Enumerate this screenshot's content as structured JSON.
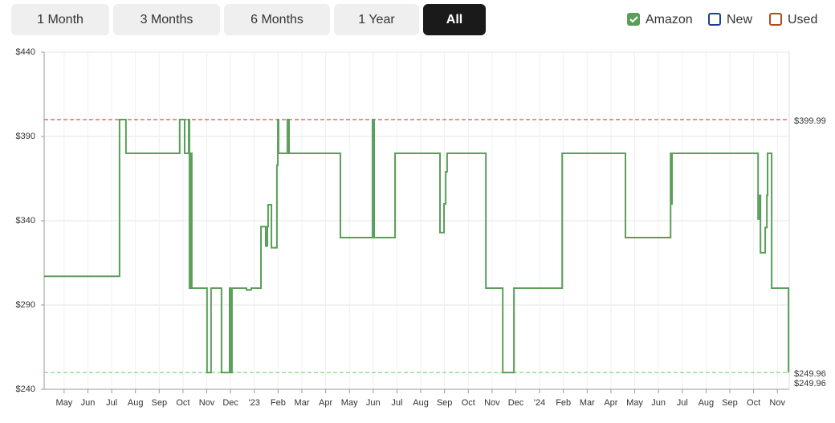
{
  "range_buttons": [
    {
      "label": "1 Month",
      "active": false
    },
    {
      "label": "3 Months",
      "active": false
    },
    {
      "label": "6 Months",
      "active": false
    },
    {
      "label": "1 Year",
      "active": false
    },
    {
      "label": "All",
      "active": true
    }
  ],
  "chart_data": {
    "type": "step",
    "series": [
      {
        "name": "Amazon",
        "color": "#5a9e5a",
        "checked": true,
        "x": [
          -0.84,
          2.33,
          2.6,
          4.86,
          5.07,
          5.24,
          5.27,
          5.34,
          5.37,
          6.01,
          6.18,
          6.62,
          6.96,
          6.99,
          7.06,
          7.67,
          7.87,
          8.28,
          8.48,
          8.55,
          8.58,
          8.72,
          8.95,
          8.99,
          9.02,
          9.39,
          9.46,
          11.62,
          12.97,
          13.04,
          13.92,
          15.81,
          15.98,
          16.05,
          16.11,
          17.74,
          18.45,
          18.92,
          20.95,
          23.61,
          25.51,
          25.54,
          25.57,
          29.19,
          29.26,
          29.29,
          29.49,
          29.56,
          29.59,
          29.76,
          30.47
        ],
        "values": [
          307,
          399.99,
          379.99,
          399.99,
          379.99,
          399.99,
          299.99,
          379.99,
          299.99,
          249.96,
          299.99,
          249.96,
          299.99,
          249.96,
          299.99,
          298.99,
          299.99,
          336.5,
          325,
          336.5,
          349.5,
          324,
          373,
          399.99,
          379.99,
          399.99,
          379.99,
          329.99,
          399.99,
          329.99,
          379.99,
          333,
          350,
          369,
          379.99,
          299.99,
          249.96,
          299.99,
          379.99,
          329.99,
          379.99,
          349.99,
          379.99,
          341,
          355,
          320.99,
          336,
          355,
          379.99,
          299.99,
          249.96
        ]
      },
      {
        "name": "New",
        "color": "#1f3f8f",
        "checked": false
      },
      {
        "name": "Used",
        "color": "#b8461f",
        "checked": false
      }
    ],
    "reference_lines": [
      {
        "value": 399.99,
        "label": "$399.99",
        "color": "#cc5555"
      },
      {
        "value": 249.96,
        "label": "$249.96",
        "color": "#77cc77"
      }
    ],
    "end_label": {
      "value": 249.96,
      "label": "$249.96",
      "color": "#5fb85f"
    },
    "ylim": [
      240,
      440
    ],
    "yticks": [
      {
        "value": 240,
        "label": "$240"
      },
      {
        "value": 290,
        "label": "$290"
      },
      {
        "value": 340,
        "label": "$340"
      },
      {
        "value": 390,
        "label": "$390"
      },
      {
        "value": 440,
        "label": "$440"
      }
    ],
    "xlim": [
      -0.84,
      30.5
    ],
    "xticks": [
      {
        "value": 0,
        "label": "May"
      },
      {
        "value": 1,
        "label": "Jun"
      },
      {
        "value": 2,
        "label": "Jul"
      },
      {
        "value": 3,
        "label": "Aug"
      },
      {
        "value": 4,
        "label": "Sep"
      },
      {
        "value": 5,
        "label": "Oct"
      },
      {
        "value": 6,
        "label": "Nov"
      },
      {
        "value": 7,
        "label": "Dec"
      },
      {
        "value": 8,
        "label": "'23"
      },
      {
        "value": 9,
        "label": "Feb"
      },
      {
        "value": 10,
        "label": "Mar"
      },
      {
        "value": 11,
        "label": "Apr"
      },
      {
        "value": 12,
        "label": "May"
      },
      {
        "value": 13,
        "label": "Jun"
      },
      {
        "value": 14,
        "label": "Jul"
      },
      {
        "value": 15,
        "label": "Aug"
      },
      {
        "value": 16,
        "label": "Sep"
      },
      {
        "value": 17,
        "label": "Oct"
      },
      {
        "value": 18,
        "label": "Nov"
      },
      {
        "value": 19,
        "label": "Dec"
      },
      {
        "value": 20,
        "label": "'24"
      },
      {
        "value": 21,
        "label": "Feb"
      },
      {
        "value": 22,
        "label": "Mar"
      },
      {
        "value": 23,
        "label": "Apr"
      },
      {
        "value": 24,
        "label": "May"
      },
      {
        "value": 25,
        "label": "Jun"
      },
      {
        "value": 26,
        "label": "Jul"
      },
      {
        "value": 27,
        "label": "Aug"
      },
      {
        "value": 28,
        "label": "Sep"
      },
      {
        "value": 29,
        "label": "Oct"
      },
      {
        "value": 30,
        "label": "Nov"
      }
    ],
    "grid": true
  }
}
